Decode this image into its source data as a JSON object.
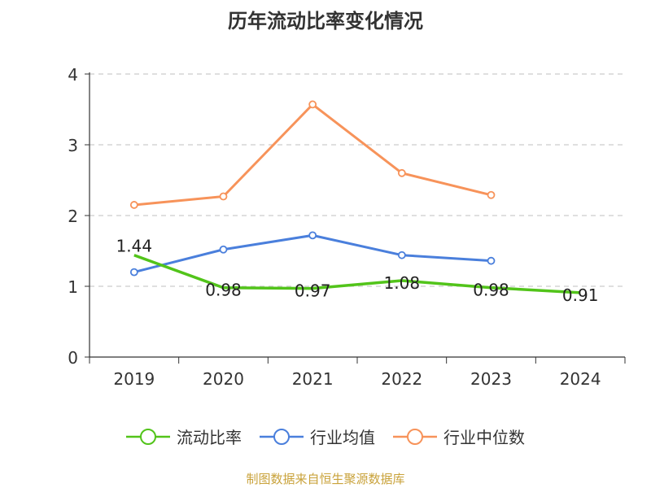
{
  "chart_data": {
    "type": "line",
    "title": "历年流动比率变化情况",
    "categories": [
      "2019",
      "2020",
      "2021",
      "2022",
      "2023",
      "2024"
    ],
    "ylim": [
      0,
      4
    ],
    "yticks": [
      0,
      1,
      2,
      3,
      4
    ],
    "grid": true,
    "legend_position": "bottom",
    "series": [
      {
        "name": "流动比率",
        "color": "#52c41a",
        "values": [
          1.44,
          0.98,
          0.97,
          1.08,
          0.98,
          0.91
        ],
        "labels": [
          "1.44",
          "0.98",
          "0.97",
          "1.08",
          "0.98",
          "0.91"
        ]
      },
      {
        "name": "行业均值",
        "color": "#4a7fdc",
        "values": [
          1.2,
          1.52,
          1.72,
          1.44,
          1.36,
          null
        ]
      },
      {
        "name": "行业中位数",
        "color": "#f7935a",
        "values": [
          2.15,
          2.27,
          3.57,
          2.6,
          2.29,
          null
        ]
      }
    ]
  },
  "source": "制图数据来自恒生聚源数据库"
}
